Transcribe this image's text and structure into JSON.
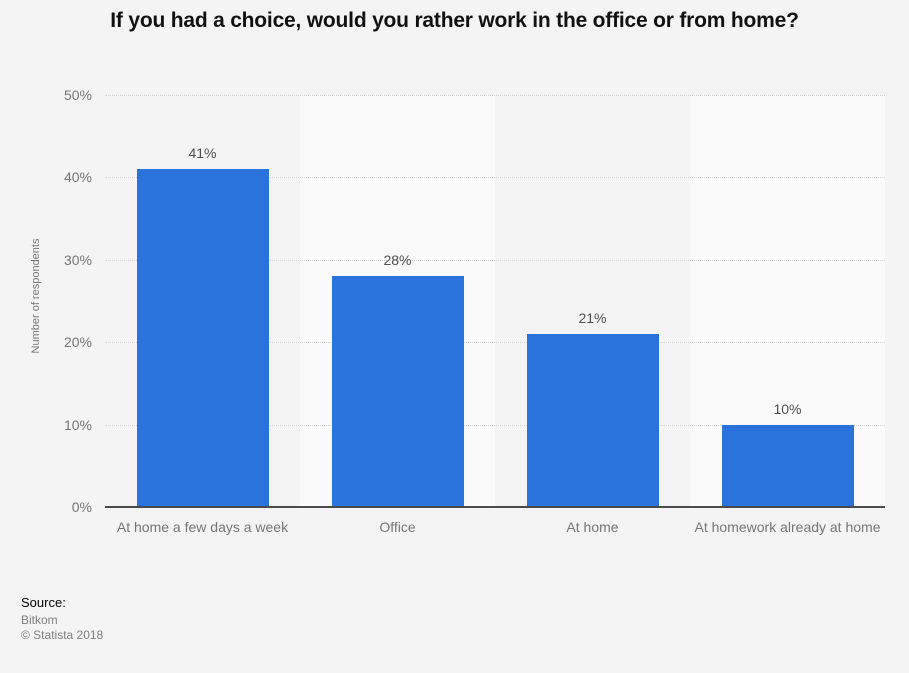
{
  "page": {
    "background_color": "#f4f4f5",
    "band_alt_color": "#fafafa",
    "gridline_color": "#d2d2d4",
    "axis_line_color": "#4a4a4a",
    "muted_text_color": "#767676",
    "value_label_color": "#4d4d4d"
  },
  "chart_data": {
    "type": "bar",
    "title": "If you had a choice, would you rather work in the office or from home?",
    "categories": [
      "At home a few days a week",
      "Office",
      "At home",
      "At homework already at home"
    ],
    "values": [
      41,
      28,
      21,
      10
    ],
    "value_labels": [
      "41%",
      "28%",
      "21%",
      "10%"
    ],
    "xlabel": "",
    "ylabel": "Number of respondents",
    "ylim": [
      0,
      50
    ],
    "yticks": [
      0,
      10,
      20,
      30,
      40,
      50
    ],
    "ytick_labels": [
      "0%",
      "10%",
      "20%",
      "30%",
      "40%",
      "50%"
    ],
    "grid": "horizontal-dotted",
    "legend": "none",
    "bar_color": "#2a73dd"
  },
  "source": {
    "label": "Source:",
    "name": "Bitkom",
    "copyright": "© Statista 2018"
  }
}
